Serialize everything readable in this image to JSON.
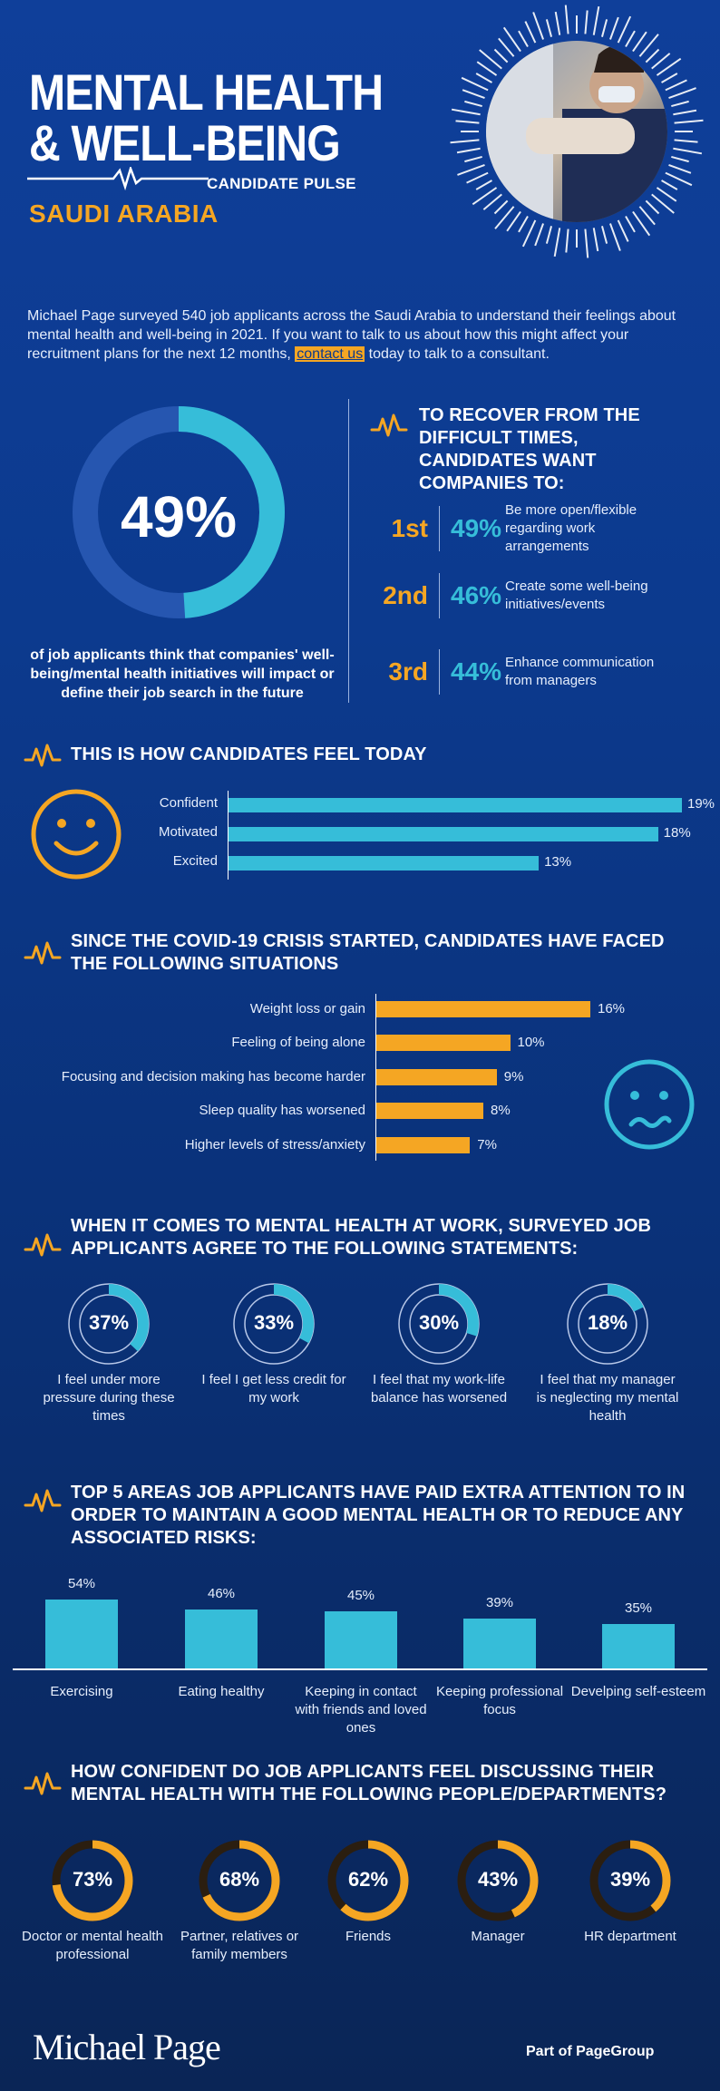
{
  "header": {
    "title_line1": "MENTAL HEALTH",
    "title_line2": "& WELL-BEING",
    "pulse_label": "CANDIDATE PULSE",
    "country": "SAUDI ARABIA"
  },
  "intro": {
    "text_before": "Michael Page surveyed 540 job applicants across the Saudi Arabia to understand their feelings about mental health and well-being in 2021. If you want to talk to us about how this might affect your recruitment plans for the next 12 months,",
    "link": "contact us",
    "text_after": "today to talk to a consultant."
  },
  "big_stat": {
    "value": "49%",
    "fraction": 0.49,
    "caption": "of job applicants think that companies' well-being/mental health initiatives will impact or define their job search in the future"
  },
  "recover": {
    "heading": "TO RECOVER FROM THE DIFFICULT TIMES, CANDIDATES WANT COMPANIES TO:",
    "items": [
      {
        "rank": "1st",
        "pct": "49%",
        "text": "Be more open/flexible regarding work arrangements"
      },
      {
        "rank": "2nd",
        "pct": "46%",
        "text": "Create some well-being initiatives/events"
      },
      {
        "rank": "3rd",
        "pct": "44%",
        "text": "Enhance communication from managers"
      }
    ]
  },
  "feel_today": {
    "heading": "THIS IS HOW CANDIDATES FEEL TODAY",
    "bars": [
      {
        "label": "Confident",
        "value": 19,
        "display": "19%"
      },
      {
        "label": "Motivated",
        "value": 18,
        "display": "18%"
      },
      {
        "label": "Excited",
        "value": 13,
        "display": "13%"
      }
    ]
  },
  "situations": {
    "heading": "SINCE THE COVID-19 CRISIS STARTED, CANDIDATES HAVE FACED THE FOLLOWING SITUATIONS",
    "bars": [
      {
        "label": "Weight loss or gain",
        "value": 16,
        "display": "16%"
      },
      {
        "label": "Feeling of being alone",
        "value": 10,
        "display": "10%"
      },
      {
        "label": "Focusing and decision making has become harder",
        "value": 9,
        "display": "9%"
      },
      {
        "label": "Sleep quality has worsened",
        "value": 8,
        "display": "8%"
      },
      {
        "label": "Higher levels of stress/anxiety",
        "value": 7,
        "display": "7%"
      }
    ]
  },
  "statements": {
    "heading": "WHEN IT COMES TO MENTAL HEALTH AT WORK, SURVEYED JOB APPLICANTS AGREE TO THE FOLLOWING STATEMENTS:",
    "items": [
      {
        "pct": "37%",
        "value": 37,
        "label": "I feel under more pressure during these times"
      },
      {
        "pct": "33%",
        "value": 33,
        "label": "I feel I get less credit for my work"
      },
      {
        "pct": "30%",
        "value": 30,
        "label": "I feel that my work-life balance has worsened"
      },
      {
        "pct": "18%",
        "value": 18,
        "label": "I feel that my manager is neglecting my mental health"
      }
    ]
  },
  "top5": {
    "heading": "TOP 5 AREAS JOB APPLICANTS HAVE PAID EXTRA ATTENTION TO IN ORDER TO MAINTAIN A GOOD MENTAL HEALTH OR TO REDUCE ANY ASSOCIATED RISKS:",
    "bars": [
      {
        "label": "Exercising",
        "value": 54,
        "display": "54%"
      },
      {
        "label": "Eating healthy",
        "value": 46,
        "display": "46%"
      },
      {
        "label": "Keeping in contact with friends and loved ones",
        "value": 45,
        "display": "45%"
      },
      {
        "label": "Keeping professional focus",
        "value": 39,
        "display": "39%"
      },
      {
        "label": "Develping self-esteem",
        "value": 35,
        "display": "35%"
      }
    ]
  },
  "confidence": {
    "heading": "HOW CONFIDENT DO JOB APPLICANTS FEEL DISCUSSING THEIR MENTAL HEALTH WITH THE FOLLOWING PEOPLE/DEPARTMENTS?",
    "items": [
      {
        "pct": "73%",
        "value": 73,
        "label": "Doctor or mental health professional"
      },
      {
        "pct": "68%",
        "value": 68,
        "label": "Partner, relatives or family members"
      },
      {
        "pct": "62%",
        "value": 62,
        "label": "Friends"
      },
      {
        "pct": "43%",
        "value": 43,
        "label": "Manager"
      },
      {
        "pct": "39%",
        "value": 39,
        "label": "HR department"
      }
    ]
  },
  "footer": {
    "logo": "Michael Page",
    "part_of_prefix": "Part of ",
    "part_of_brand": "PageGroup"
  },
  "colors": {
    "orange": "#f5a623",
    "cyan": "#36bdd9",
    "background": "#0c3a8e"
  },
  "icons": {
    "pulse": "heartbeat-pulse-icon",
    "happy": "smiley-face-icon",
    "sad": "worried-face-icon"
  }
}
